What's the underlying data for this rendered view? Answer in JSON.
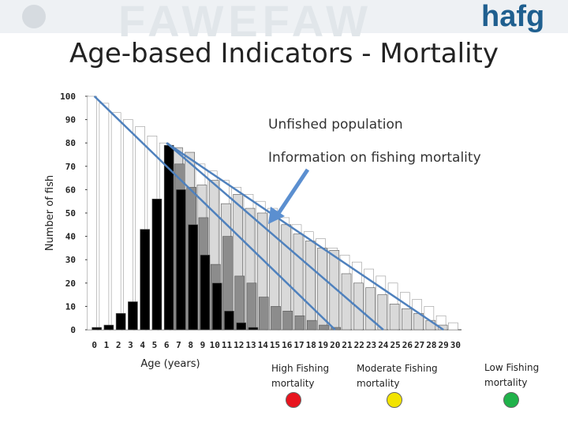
{
  "slide": {
    "title": "Age-based Indicators - Mortality",
    "brand_text": "hafg",
    "background_watermark": "FAWEFAW"
  },
  "legend": {
    "unfished": "Unfished population",
    "info": "Information on fishing mortality",
    "high": "High Fishing mortality",
    "moderate": "Moderate Fishing mortality",
    "low": "Low Fishing mortality",
    "colors": {
      "high": "#e8141e",
      "moderate": "#f2e300",
      "low": "#20b24a",
      "arrow": "#5b8fd0",
      "line": "#4f81bd"
    }
  },
  "chart_data": {
    "type": "bar",
    "title": "Age-based Indicators - Mortality",
    "xlabel": "Age (years)",
    "ylabel": "Number of fish",
    "ylim": [
      0,
      100
    ],
    "yticks": [
      0,
      10,
      20,
      30,
      40,
      50,
      60,
      70,
      80,
      90,
      100
    ],
    "categories": [
      "0",
      "1",
      "2",
      "3",
      "4",
      "5",
      "6",
      "7",
      "8",
      "9",
      "10",
      "11",
      "12",
      "13",
      "14",
      "15",
      "16",
      "17",
      "18",
      "19",
      "20",
      "21",
      "22",
      "23",
      "24",
      "25",
      "26",
      "27",
      "28",
      "29",
      "30"
    ],
    "series": [
      {
        "name": "Unfished population",
        "color": "#ffffff",
        "values": [
          100,
          97,
          93,
          90,
          87,
          83,
          80,
          77,
          74,
          71,
          68,
          64,
          61,
          58,
          55,
          52,
          48,
          45,
          42,
          39,
          35,
          32,
          29,
          26,
          23,
          20,
          16,
          13,
          10,
          6,
          3
        ]
      },
      {
        "name": "Low Fishing mortality",
        "color": "#d9d9d9",
        "values": [
          0,
          0,
          0,
          0,
          0,
          0,
          0,
          78,
          76,
          62,
          64,
          54,
          58,
          52,
          50,
          48,
          45,
          41,
          38,
          35,
          34,
          24,
          20,
          18,
          15,
          11,
          9,
          7,
          4,
          2,
          0
        ]
      },
      {
        "name": "Moderate Fishing mortality",
        "color": "#8c8c8c",
        "values": [
          0,
          0,
          0,
          0,
          0,
          0,
          0,
          71,
          61,
          48,
          28,
          40,
          23,
          20,
          14,
          10,
          8,
          6,
          4,
          2,
          1,
          0,
          0,
          0,
          0,
          0,
          0,
          0,
          0,
          0,
          0
        ]
      },
      {
        "name": "High Fishing mortality",
        "color": "#000000",
        "values": [
          1,
          2,
          7,
          12,
          43,
          56,
          79,
          60,
          45,
          32,
          20,
          8,
          3,
          1,
          0,
          0,
          0,
          0,
          0,
          0,
          0,
          0,
          0,
          0,
          0,
          0,
          0,
          0,
          0,
          0,
          0
        ]
      }
    ],
    "decline_lines": [
      {
        "name": "High Fishing mortality",
        "from": [
          0,
          100
        ],
        "to": [
          20,
          0
        ]
      },
      {
        "name": "Moderate Fishing mortality",
        "from": [
          6,
          80
        ],
        "to": [
          24,
          0
        ]
      },
      {
        "name": "Low Fishing mortality",
        "from": [
          6,
          80
        ],
        "to": [
          29,
          0
        ]
      }
    ]
  }
}
